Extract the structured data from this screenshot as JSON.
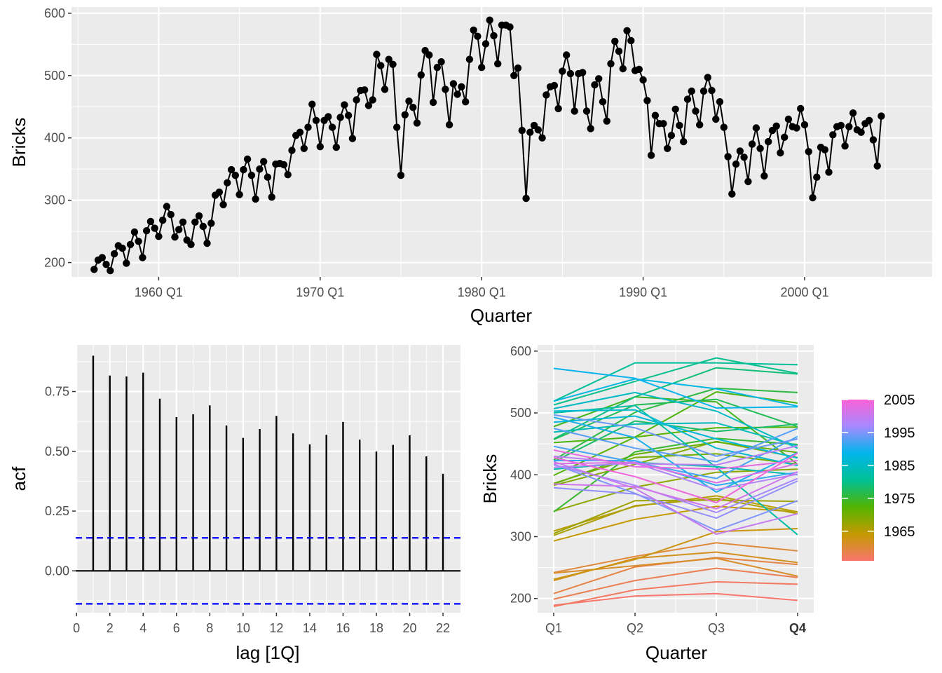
{
  "chart_data": [
    {
      "type": "line",
      "x_axis": {
        "label": "Quarter",
        "ticks": [
          "1960 Q1",
          "1970 Q1",
          "1980 Q1",
          "1990 Q1",
          "2000 Q1"
        ],
        "range": [
          1954.6,
          2007.9
        ]
      },
      "y_axis": {
        "label": "Bricks",
        "ticks": [
          200,
          300,
          400,
          500,
          600
        ],
        "range": [
          177,
          610
        ]
      },
      "markers": true,
      "grid": true,
      "series": [
        {
          "start": "1956 Q1",
          "values": [
            189,
            204,
            208,
            197,
            187,
            214,
            227,
            223,
            199,
            229,
            249,
            234,
            208,
            251,
            266,
            255,
            242,
            268,
            290,
            277,
            241,
            253,
            265,
            236,
            229,
            265,
            275,
            258,
            231,
            263,
            308,
            313,
            293,
            328,
            349,
            340,
            309,
            349,
            366,
            340,
            302,
            350,
            362,
            337,
            305,
            358,
            359,
            357,
            341,
            380,
            404,
            409,
            383,
            417,
            454,
            428,
            386,
            428,
            434,
            417,
            385,
            433,
            453,
            436,
            399,
            461,
            476,
            477,
            452,
            461,
            534,
            516,
            478,
            526,
            518,
            417,
            340,
            437,
            459,
            449,
            424,
            501,
            540,
            533,
            457,
            513,
            522,
            478,
            421,
            487,
            470,
            482,
            458,
            526,
            573,
            563,
            513,
            551,
            589,
            564,
            519,
            581,
            581,
            578,
            500,
            512,
            412,
            303,
            409,
            420,
            413,
            400,
            469,
            482,
            484,
            447,
            507,
            533,
            503,
            443,
            503,
            505,
            443,
            415,
            485,
            495,
            458,
            427,
            519,
            555,
            539,
            511,
            572,
            556,
            508,
            510,
            493,
            460,
            372,
            436,
            423,
            423,
            383,
            404,
            446,
            420,
            394,
            462,
            475,
            443,
            421,
            475,
            497,
            476,
            430,
            458,
            417,
            370,
            310,
            358,
            379,
            369,
            330,
            390,
            416,
            383,
            339,
            394,
            412,
            419,
            376,
            401,
            430,
            418,
            416,
            447,
            421,
            378,
            304,
            337,
            385,
            381,
            345,
            405,
            418,
            420,
            387,
            418,
            440,
            413,
            409,
            423,
            428,
            397,
            355,
            435
          ]
        }
      ]
    },
    {
      "type": "bar",
      "x_axis": {
        "label": "lag [1Q]",
        "ticks": [
          0,
          2,
          4,
          6,
          8,
          10,
          12,
          14,
          16,
          18,
          20,
          22
        ],
        "range": [
          -0.05,
          23.05
        ]
      },
      "y_axis": {
        "label": "acf",
        "ticks": [
          "0.00",
          "0.25",
          "0.50",
          "0.75"
        ],
        "range": [
          -0.175,
          0.945
        ]
      },
      "lags": [
        1,
        2,
        3,
        4,
        5,
        6,
        7,
        8,
        9,
        10,
        11,
        12,
        13,
        14,
        15,
        16,
        17,
        18,
        19,
        20,
        21,
        22
      ],
      "values": [
        0.9,
        0.817,
        0.813,
        0.829,
        0.72,
        0.643,
        0.655,
        0.692,
        0.608,
        0.556,
        0.593,
        0.648,
        0.575,
        0.529,
        0.569,
        0.623,
        0.549,
        0.499,
        0.527,
        0.567,
        0.479,
        0.406
      ],
      "confidence_bounds": [
        0.138,
        -0.138
      ],
      "grid": true
    },
    {
      "type": "line",
      "subtype": "seasonal",
      "x_axis": {
        "label": "Quarter",
        "ticks": [
          "Q1",
          "Q2",
          "Q3",
          "Q4"
        ]
      },
      "y_axis": {
        "label": "Bricks",
        "ticks": [
          200,
          300,
          400,
          500,
          600
        ],
        "range": [
          177,
          610
        ]
      },
      "color_legend": {
        "labels": [
          "2005",
          "1995",
          "1985",
          "1975",
          "1965"
        ],
        "colors": [
          "#f8766d",
          "#c49a00",
          "#53b400",
          "#00c094",
          "#00b6eb",
          "#a58aff",
          "#fb61d7"
        ],
        "range": [
          1956,
          2005
        ]
      },
      "grid": true
    }
  ]
}
